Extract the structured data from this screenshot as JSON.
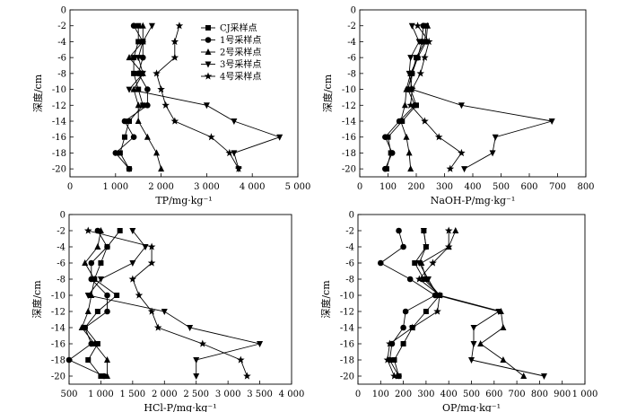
{
  "figure": {
    "legend": [
      {
        "name": "CJ采样点",
        "marker": "square"
      },
      {
        "name": "1号采样点",
        "marker": "circle"
      },
      {
        "name": "2号采样点",
        "marker": "triangle-up"
      },
      {
        "name": "3号采样点",
        "marker": "triangle-down"
      },
      {
        "name": "4号采样点",
        "marker": "star"
      }
    ]
  },
  "chart_data": [
    {
      "type": "line",
      "xlabel": "TP/mg·kg⁻¹",
      "ylabel": "深度/cm",
      "xlim": [
        0,
        5000
      ],
      "xticks": [
        0,
        1000,
        2000,
        3000,
        4000,
        5000
      ],
      "xtick_labels": [
        "0",
        "1 000",
        "2 000",
        "3 000",
        "4 000",
        "5 000"
      ],
      "ylim": [
        -21,
        0
      ],
      "yticks": [
        0,
        -2,
        -4,
        -6,
        -8,
        -10,
        -12,
        -14,
        -16,
        -18,
        -20
      ],
      "ytick_labels": [
        "0",
        "-2",
        "-4",
        "-6",
        "-8",
        "-10",
        "-12",
        "-14",
        "-16",
        "-18",
        "-20"
      ],
      "legend_position": "top-right",
      "y": [
        -2,
        -4,
        -6,
        -8,
        -10,
        -12,
        -14,
        -16,
        -18,
        -20
      ],
      "series": [
        {
          "name": "CJ采样点",
          "marker": "square",
          "x": [
            1500,
            1500,
            1400,
            1400,
            1500,
            1600,
            1300,
            1200,
            1100,
            1300
          ]
        },
        {
          "name": "1号采样点",
          "marker": "circle",
          "x": [
            1400,
            1600,
            1600,
            1500,
            1700,
            1700,
            1200,
            1400,
            1000,
            1300
          ]
        },
        {
          "name": "2号采样点",
          "marker": "triangle-up",
          "x": [
            1600,
            1600,
            1300,
            1600,
            1400,
            1500,
            1500,
            1700,
            1900,
            2000
          ]
        },
        {
          "name": "3号采样点",
          "marker": "triangle-down",
          "x": [
            1800,
            1600,
            1500,
            1600,
            1300,
            3000,
            3600,
            4600,
            3600,
            3700
          ]
        },
        {
          "name": "4号采样点",
          "marker": "star",
          "x": [
            2400,
            2300,
            2300,
            1900,
            2000,
            2100,
            2300,
            3100,
            3500,
            3700
          ]
        }
      ]
    },
    {
      "type": "line",
      "xlabel": "NaOH-P/mg·kg⁻¹",
      "ylabel": "深度/cm",
      "xlim": [
        0,
        800
      ],
      "xticks": [
        0,
        100,
        200,
        300,
        400,
        500,
        600,
        700,
        800
      ],
      "xtick_labels": [
        "0",
        "100",
        "200",
        "300",
        "400",
        "500",
        "600",
        "700",
        "800"
      ],
      "ylim": [
        -21,
        0
      ],
      "yticks": [
        0,
        -2,
        -4,
        -6,
        -8,
        -10,
        -12,
        -14,
        -16,
        -18,
        -20
      ],
      "ytick_labels": [
        "0",
        "-2",
        "-4",
        "-6",
        "-8",
        "-10",
        "-12",
        "-14",
        "-16",
        "-18",
        "-20"
      ],
      "y": [
        -2,
        -4,
        -6,
        -8,
        -10,
        -12,
        -14,
        -16,
        -18,
        -20
      ],
      "series": [
        {
          "name": "CJ采样点",
          "marker": "square",
          "x": [
            235,
            230,
            200,
            185,
            180,
            200,
            150,
            100,
            110,
            95
          ]
        },
        {
          "name": "1号采样点",
          "marker": "circle",
          "x": [
            225,
            220,
            205,
            185,
            170,
            195,
            140,
            90,
            115,
            90
          ]
        },
        {
          "name": "2号采样点",
          "marker": "triangle-up",
          "x": [
            240,
            235,
            205,
            180,
            165,
            160,
            145,
            165,
            175,
            180
          ]
        },
        {
          "name": "3号采样点",
          "marker": "triangle-down",
          "x": [
            185,
            210,
            180,
            175,
            185,
            360,
            680,
            480,
            470,
            370
          ]
        },
        {
          "name": "4号采样点",
          "marker": "star",
          "x": [
            205,
            245,
            230,
            215,
            185,
            180,
            230,
            280,
            360,
            320
          ]
        }
      ]
    },
    {
      "type": "line",
      "xlabel": "HCl-P/mg·kg⁻¹",
      "ylabel": "深度/cm",
      "xlim": [
        500,
        4000
      ],
      "xticks": [
        500,
        1000,
        1500,
        2000,
        2500,
        3000,
        3500,
        4000
      ],
      "xtick_labels": [
        "500",
        "1 000",
        "1 500",
        "2 000",
        "2 500",
        "3 000",
        "3 500",
        "4 000"
      ],
      "ylim": [
        -21,
        0
      ],
      "yticks": [
        0,
        -2,
        -4,
        -6,
        -8,
        -10,
        -12,
        -14,
        -16,
        -18,
        -20
      ],
      "ytick_labels": [
        "0",
        "-2",
        "-4",
        "-6",
        "-8",
        "-10",
        "-12",
        "-14",
        "-16",
        "-18",
        "-20"
      ],
      "y": [
        -2,
        -4,
        -6,
        -8,
        -10,
        -12,
        -14,
        -16,
        -18,
        -20
      ],
      "series": [
        {
          "name": "CJ采样点",
          "marker": "square",
          "x": [
            1300,
            1100,
            1000,
            900,
            1250,
            950,
            750,
            950,
            800,
            1000
          ]
        },
        {
          "name": "1号采样点",
          "marker": "circle",
          "x": [
            950,
            1100,
            850,
            850,
            1100,
            1100,
            750,
            850,
            500,
            1050
          ]
        },
        {
          "name": "2号采样点",
          "marker": "triangle-up",
          "x": [
            1000,
            950,
            750,
            900,
            850,
            800,
            700,
            900,
            1100,
            1100
          ]
        },
        {
          "name": "3号采样点",
          "marker": "triangle-down",
          "x": [
            1500,
            1700,
            1500,
            1000,
            800,
            2000,
            2400,
            3500,
            2500,
            2500
          ]
        },
        {
          "name": "4号采样点",
          "marker": "star",
          "x": [
            800,
            1800,
            1800,
            1500,
            1600,
            1800,
            1900,
            2600,
            3200,
            3300
          ]
        }
      ]
    },
    {
      "type": "line",
      "xlabel": "OP/mg·kg⁻¹",
      "ylabel": "深度/cm",
      "xlim": [
        0,
        1000
      ],
      "xticks": [
        0,
        100,
        200,
        300,
        400,
        500,
        600,
        700,
        800,
        900,
        1000
      ],
      "xtick_labels": [
        "0",
        "100",
        "200",
        "300",
        "400",
        "500",
        "600",
        "700",
        "800",
        "900",
        "1 000"
      ],
      "ylim": [
        -21,
        0
      ],
      "yticks": [
        0,
        -2,
        -4,
        -6,
        -8,
        -10,
        -12,
        -14,
        -16,
        -18,
        -20
      ],
      "ytick_labels": [
        "0",
        "-2",
        "-4",
        "-6",
        "-8",
        "-10",
        "-12",
        "-14",
        "-16",
        "-18",
        "-20"
      ],
      "y": [
        -2,
        -4,
        -6,
        -8,
        -10,
        -12,
        -14,
        -16,
        -18,
        -20
      ],
      "series": [
        {
          "name": "CJ采样点",
          "marker": "square",
          "x": [
            290,
            300,
            250,
            290,
            360,
            300,
            240,
            200,
            160,
            180
          ]
        },
        {
          "name": "1号采样点",
          "marker": "circle",
          "x": [
            180,
            200,
            100,
            230,
            340,
            210,
            200,
            150,
            140,
            180
          ]
        },
        {
          "name": "2号采样点",
          "marker": "triangle-up",
          "x": [
            430,
            400,
            280,
            300,
            360,
            630,
            640,
            540,
            640,
            730
          ]
        },
        {
          "name": "3号采样点",
          "marker": "triangle-down",
          "x": [
            290,
            300,
            270,
            310,
            350,
            620,
            510,
            510,
            500,
            820
          ]
        },
        {
          "name": "4号采样点",
          "marker": "star",
          "x": [
            400,
            400,
            330,
            270,
            360,
            350,
            240,
            140,
            130,
            160
          ]
        }
      ]
    }
  ]
}
